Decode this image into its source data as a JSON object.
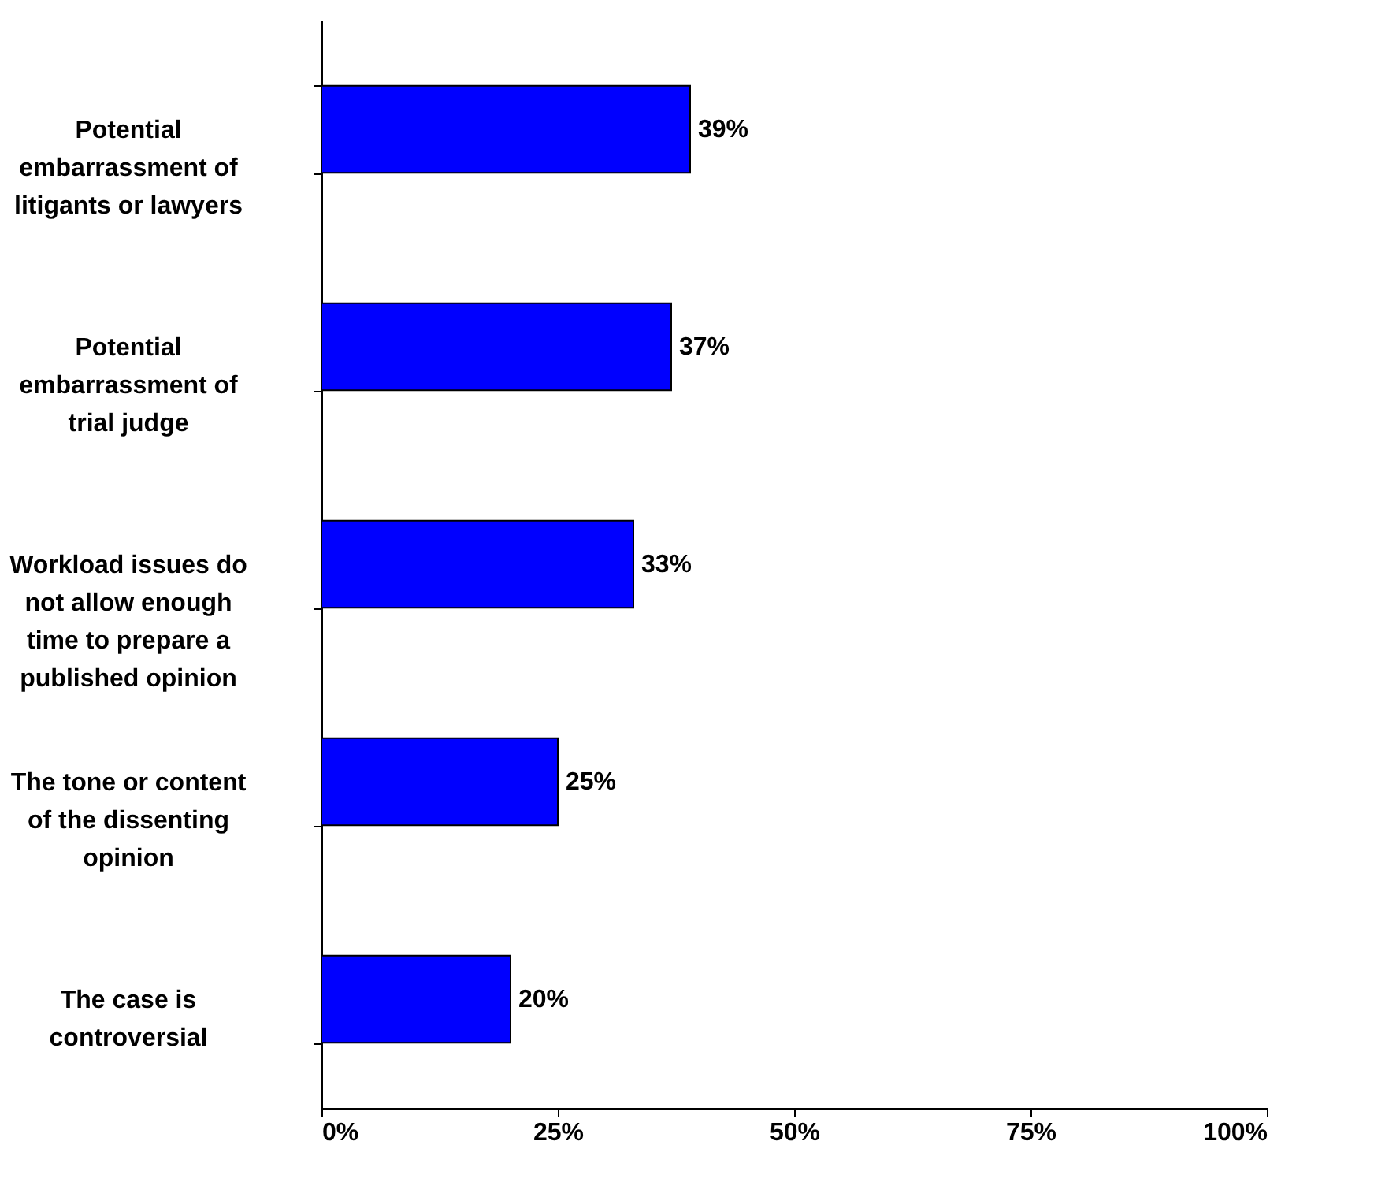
{
  "chart_data": {
    "type": "bar",
    "orientation": "horizontal",
    "categories": [
      "Potential\nembarrassment of\nlitigants or lawyers",
      "Potential\nembarrassment of\ntrial judge",
      "Workload issues do\nnot allow enough\ntime to prepare a\npublished opinion",
      "The tone or content\nof the dissenting\nopinion",
      "The case is\ncontroversial"
    ],
    "values": [
      39,
      37,
      33,
      25,
      20
    ],
    "value_labels": [
      "39%",
      "37%",
      "33%",
      "25%",
      "20%"
    ],
    "color": "#0000ff",
    "xlim": [
      0,
      100
    ],
    "xticks": [
      {
        "value": 0,
        "label": "0%"
      },
      {
        "value": 25,
        "label": "25%"
      },
      {
        "value": 50,
        "label": "50%"
      },
      {
        "value": 75,
        "label": "75%"
      },
      {
        "value": 100,
        "label": "100%"
      }
    ],
    "grid": false
  }
}
